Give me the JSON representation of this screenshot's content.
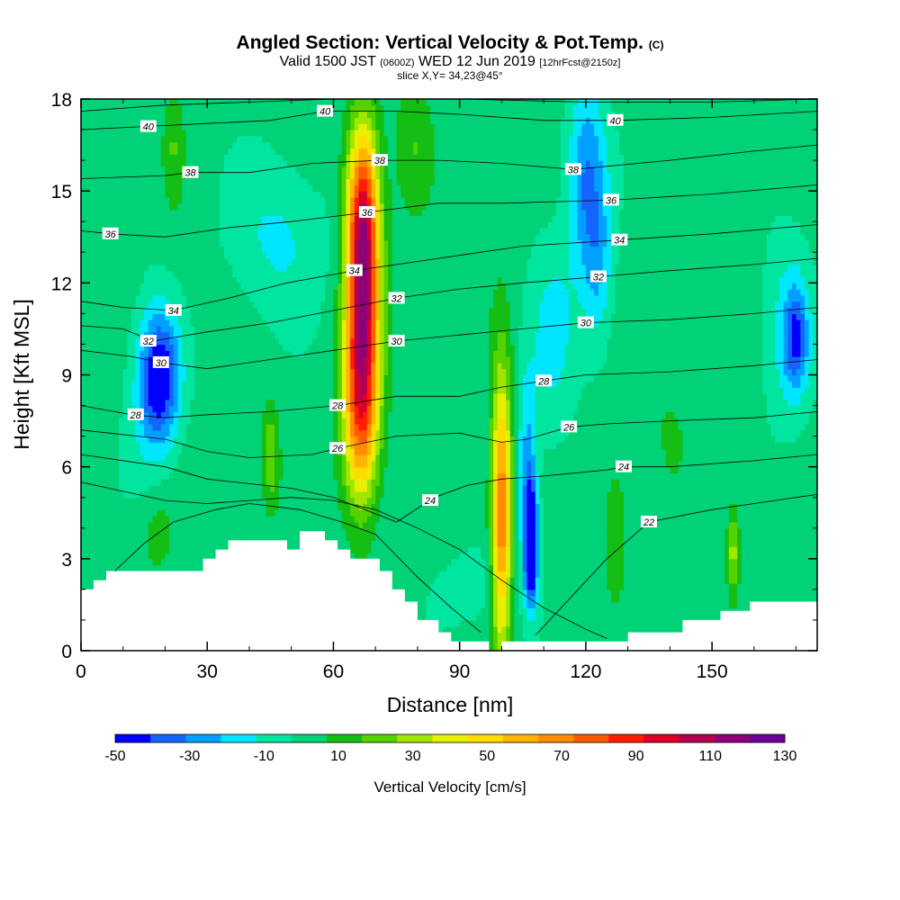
{
  "title": {
    "main": "Angled Section: Vertical Velocity & Pot.Temp.",
    "main_mark": "(C)",
    "valid_prefix": "Valid 1500 JST",
    "valid_zulu": "(0600Z)",
    "valid_day": "WED 12 Jun 2019",
    "valid_fcst": "[12hrFcst@2150z]",
    "slice": "slice X,Y= 34,23@45°"
  },
  "chart_data": {
    "type": "heatmap",
    "xlabel": "Distance [nm]",
    "ylabel": "Height [Kft MSL]",
    "xlim": [
      0,
      175
    ],
    "ylim": [
      0,
      18
    ],
    "x_ticks": [
      "0",
      "30",
      "60",
      "90",
      "120",
      "150"
    ],
    "y_ticks": [
      "0",
      "3",
      "6",
      "9",
      "12",
      "15",
      "18"
    ],
    "colorbar": {
      "title": "Vertical Velocity [cm/s]",
      "tick_labels": [
        "-50",
        "-30",
        "-10",
        "10",
        "30",
        "50",
        "70",
        "90",
        "110",
        "130"
      ],
      "levels": [
        -50,
        -40,
        -30,
        -20,
        -10,
        0,
        10,
        20,
        30,
        40,
        50,
        60,
        70,
        80,
        90,
        100,
        110,
        120,
        130
      ],
      "colors": [
        "#0000ff",
        "#1464ff",
        "#00a0ff",
        "#00e6ff",
        "#00e6a0",
        "#00d278",
        "#14be14",
        "#55d200",
        "#a0e600",
        "#e6f000",
        "#ffdc00",
        "#ffb400",
        "#ff8c00",
        "#ff5a00",
        "#ff1e00",
        "#dc0028",
        "#b40050",
        "#8c0078",
        "#6e0096"
      ]
    },
    "velocity_features": [
      {
        "x": 67,
        "y": 11,
        "sx": 2.8,
        "sy": 3.2,
        "value": 105
      },
      {
        "x": 67,
        "y": 14.5,
        "sx": 2.6,
        "sy": 2.0,
        "value": 60
      },
      {
        "x": 66,
        "y": 7.5,
        "sx": 3.0,
        "sy": 2.0,
        "value": 45
      },
      {
        "x": 100,
        "y": 4.5,
        "sx": 1.7,
        "sy": 3.2,
        "value": 82
      },
      {
        "x": 107,
        "y": 3.5,
        "sx": 1.1,
        "sy": 1.3,
        "value": -70
      },
      {
        "x": 106,
        "y": 6.0,
        "sx": 1.6,
        "sy": 2.2,
        "value": -22
      },
      {
        "x": 19,
        "y": 9.0,
        "sx": 3.2,
        "sy": 1.4,
        "value": -38
      },
      {
        "x": 17,
        "y": 8.0,
        "sx": 4.0,
        "sy": 2.2,
        "value": -15
      },
      {
        "x": 45,
        "y": 6.3,
        "sx": 1.4,
        "sy": 1.1,
        "value": 30
      },
      {
        "x": 22,
        "y": 16.5,
        "sx": 1.6,
        "sy": 1.3,
        "value": 18
      },
      {
        "x": 24,
        "y": 13.5,
        "sx": 2.2,
        "sy": 2.0,
        "value": 5
      },
      {
        "x": 120,
        "y": 15.5,
        "sx": 3.2,
        "sy": 2.3,
        "value": -28
      },
      {
        "x": 123,
        "y": 12.5,
        "sx": 2.5,
        "sy": 2.0,
        "value": -17
      },
      {
        "x": 112,
        "y": 10.2,
        "sx": 4.0,
        "sy": 2.5,
        "value": -12
      },
      {
        "x": 170,
        "y": 10.2,
        "sx": 2.0,
        "sy": 1.1,
        "value": -30
      },
      {
        "x": 168,
        "y": 10.5,
        "sx": 4.0,
        "sy": 2.5,
        "value": -12
      },
      {
        "x": 47,
        "y": 13.5,
        "sx": 8.0,
        "sy": 1.8,
        "value": -12
      },
      {
        "x": 95,
        "y": 2.0,
        "sx": 8.0,
        "sy": 1.0,
        "value": -5
      },
      {
        "x": 79,
        "y": 16.5,
        "sx": 3.0,
        "sy": 1.5,
        "value": 18
      },
      {
        "x": 155,
        "y": 3.3,
        "sx": 1.0,
        "sy": 1.0,
        "value": 35
      },
      {
        "x": 127,
        "y": 4.0,
        "sx": 2.0,
        "sy": 1.5,
        "value": 20
      },
      {
        "x": 18,
        "y": 4.0,
        "sx": 3.0,
        "sy": 1.2,
        "value": 15
      },
      {
        "x": 140,
        "y": 8.0,
        "sx": 5.0,
        "sy": 2.0,
        "value": 10
      },
      {
        "x": 90,
        "y": 11.0,
        "sx": 5.0,
        "sy": 3.0,
        "value": 5
      },
      {
        "x": 145,
        "y": 15.5,
        "sx": 5.0,
        "sy": 2.0,
        "value": 2
      }
    ],
    "terrain_kft": [
      [
        0,
        2.0
      ],
      [
        3,
        2.0
      ],
      [
        3,
        2.3
      ],
      [
        6,
        2.3
      ],
      [
        6,
        2.6
      ],
      [
        29,
        2.6
      ],
      [
        29,
        3.0
      ],
      [
        32,
        3.0
      ],
      [
        32,
        3.3
      ],
      [
        35,
        3.3
      ],
      [
        35,
        3.6
      ],
      [
        49,
        3.6
      ],
      [
        49,
        3.3
      ],
      [
        52,
        3.3
      ],
      [
        52,
        3.9
      ],
      [
        58,
        3.9
      ],
      [
        58,
        3.6
      ],
      [
        61,
        3.6
      ],
      [
        61,
        3.3
      ],
      [
        64,
        3.3
      ],
      [
        64,
        3.0
      ],
      [
        71,
        3.0
      ],
      [
        71,
        2.6
      ],
      [
        74,
        2.6
      ],
      [
        74,
        2.0
      ],
      [
        77,
        2.0
      ],
      [
        77,
        1.6
      ],
      [
        80,
        1.6
      ],
      [
        80,
        1.0
      ],
      [
        85,
        1.0
      ],
      [
        85,
        0.6
      ],
      [
        88,
        0.6
      ],
      [
        88,
        0.3
      ],
      [
        97,
        0.3
      ],
      [
        97,
        0.0
      ],
      [
        100,
        0.0
      ],
      [
        100,
        0.3
      ],
      [
        130,
        0.3
      ],
      [
        130,
        0.6
      ],
      [
        143,
        0.6
      ],
      [
        143,
        1.0
      ],
      [
        152,
        1.0
      ],
      [
        152,
        1.3
      ],
      [
        159,
        1.3
      ],
      [
        159,
        1.6
      ],
      [
        175,
        1.6
      ]
    ],
    "theta_contours": [
      {
        "label": "22",
        "points": [
          [
            108,
            0.5
          ],
          [
            125,
            3.0
          ],
          [
            135,
            4.2
          ],
          [
            150,
            4.6
          ],
          [
            160,
            4.8
          ],
          [
            175,
            5.1
          ]
        ],
        "labels": [
          [
            135,
            4.2
          ]
        ]
      },
      {
        "label": "24",
        "points": [
          [
            0,
            6.4
          ],
          [
            20,
            6.0
          ],
          [
            30,
            5.6
          ],
          [
            50,
            5.3
          ],
          [
            60,
            5.0
          ],
          [
            75,
            4.2
          ],
          [
            84,
            5.0
          ],
          [
            92,
            5.4
          ],
          [
            100,
            5.6
          ],
          [
            110,
            5.7
          ],
          [
            125,
            5.9
          ],
          [
            129,
            6.0
          ],
          [
            140,
            6.0
          ],
          [
            160,
            6.2
          ],
          [
            175,
            6.4
          ]
        ],
        "labels": [
          [
            83,
            4.9
          ],
          [
            129,
            6.0
          ]
        ]
      },
      {
        "label": "26",
        "points": [
          [
            0,
            7.2
          ],
          [
            20,
            6.9
          ],
          [
            30,
            6.5
          ],
          [
            40,
            6.3
          ],
          [
            55,
            6.4
          ],
          [
            61,
            6.6
          ],
          [
            75,
            7.0
          ],
          [
            90,
            7.1
          ],
          [
            100,
            6.8
          ],
          [
            106,
            6.9
          ],
          [
            116,
            7.3
          ],
          [
            125,
            7.4
          ],
          [
            140,
            7.5
          ],
          [
            160,
            7.6
          ],
          [
            175,
            7.8
          ]
        ],
        "labels": [
          [
            61,
            6.6
          ],
          [
            116,
            7.3
          ]
        ]
      },
      {
        "label": "28",
        "points": [
          [
            0,
            8.0
          ],
          [
            12,
            7.7
          ],
          [
            20,
            7.6
          ],
          [
            30,
            7.7
          ],
          [
            45,
            7.8
          ],
          [
            61,
            8.0
          ],
          [
            75,
            8.3
          ],
          [
            90,
            8.3
          ],
          [
            100,
            8.6
          ],
          [
            110,
            8.8
          ],
          [
            120,
            9.0
          ],
          [
            140,
            9.1
          ],
          [
            160,
            9.3
          ],
          [
            175,
            9.5
          ]
        ],
        "labels": [
          [
            13,
            7.7
          ],
          [
            61,
            8.0
          ],
          [
            110,
            8.8
          ]
        ]
      },
      {
        "label": "30",
        "points": [
          [
            0,
            9.8
          ],
          [
            12,
            9.6
          ],
          [
            19,
            9.4
          ],
          [
            30,
            9.2
          ],
          [
            45,
            9.5
          ],
          [
            60,
            9.8
          ],
          [
            75,
            10.1
          ],
          [
            90,
            10.3
          ],
          [
            105,
            10.5
          ],
          [
            120,
            10.7
          ],
          [
            140,
            10.8
          ],
          [
            160,
            11.0
          ],
          [
            175,
            11.2
          ]
        ],
        "labels": [
          [
            19,
            9.4
          ],
          [
            75,
            10.1
          ],
          [
            120,
            10.7
          ]
        ]
      },
      {
        "label": "32",
        "points": [
          [
            0,
            10.6
          ],
          [
            10,
            10.5
          ],
          [
            17,
            10.1
          ],
          [
            30,
            10.4
          ],
          [
            45,
            10.7
          ],
          [
            60,
            11.1
          ],
          [
            75,
            11.5
          ],
          [
            90,
            11.8
          ],
          [
            105,
            12.0
          ],
          [
            123,
            12.2
          ],
          [
            140,
            12.4
          ],
          [
            160,
            12.6
          ],
          [
            175,
            12.8
          ]
        ],
        "labels": [
          [
            16,
            10.1
          ],
          [
            75,
            11.5
          ],
          [
            123,
            12.2
          ]
        ]
      },
      {
        "label": "34",
        "points": [
          [
            0,
            11.4
          ],
          [
            10,
            11.2
          ],
          [
            22,
            11.1
          ],
          [
            35,
            11.5
          ],
          [
            49,
            12.0
          ],
          [
            65,
            12.4
          ],
          [
            80,
            12.7
          ],
          [
            90,
            12.9
          ],
          [
            105,
            13.2
          ],
          [
            128,
            13.4
          ],
          [
            150,
            13.6
          ],
          [
            175,
            13.9
          ]
        ],
        "labels": [
          [
            22,
            11.1
          ],
          [
            65,
            12.4
          ],
          [
            128,
            13.4
          ]
        ]
      },
      {
        "label": "36",
        "points": [
          [
            0,
            13.7
          ],
          [
            7,
            13.6
          ],
          [
            20,
            13.5
          ],
          [
            35,
            13.8
          ],
          [
            50,
            14.0
          ],
          [
            68,
            14.3
          ],
          [
            85,
            14.6
          ],
          [
            100,
            14.6
          ],
          [
            126,
            14.7
          ],
          [
            150,
            14.9
          ],
          [
            175,
            15.2
          ]
        ],
        "labels": [
          [
            7,
            13.6
          ],
          [
            68,
            14.3
          ],
          [
            126,
            14.7
          ]
        ]
      },
      {
        "label": "38",
        "points": [
          [
            0,
            15.4
          ],
          [
            20,
            15.5
          ],
          [
            26,
            15.6
          ],
          [
            40,
            15.6
          ],
          [
            55,
            15.9
          ],
          [
            71,
            16.0
          ],
          [
            85,
            16.0
          ],
          [
            100,
            15.9
          ],
          [
            117,
            15.7
          ],
          [
            140,
            16.0
          ],
          [
            160,
            16.3
          ],
          [
            175,
            16.5
          ]
        ],
        "labels": [
          [
            26,
            15.6
          ],
          [
            71,
            16.0
          ],
          [
            117,
            15.7
          ]
        ]
      },
      {
        "label": "40",
        "points": [
          [
            0,
            17.0
          ],
          [
            15,
            17.1
          ],
          [
            30,
            17.2
          ],
          [
            45,
            17.3
          ],
          [
            58,
            17.6
          ],
          [
            75,
            17.6
          ],
          [
            90,
            17.5
          ],
          [
            110,
            17.3
          ],
          [
            127,
            17.3
          ],
          [
            150,
            17.4
          ],
          [
            175,
            17.6
          ]
        ],
        "labels": [
          [
            16,
            17.1
          ],
          [
            58,
            17.6
          ],
          [
            127,
            17.3
          ]
        ]
      },
      {
        "label": "",
        "points": [
          [
            0,
            17.6
          ],
          [
            20,
            17.8
          ],
          [
            40,
            17.9
          ],
          [
            60,
            18.0
          ],
          [
            90,
            18.0
          ],
          [
            120,
            17.9
          ],
          [
            150,
            17.9
          ],
          [
            175,
            18.0
          ]
        ],
        "labels": []
      },
      {
        "label": "",
        "points": [
          [
            8,
            2.6
          ],
          [
            15,
            3.5
          ],
          [
            22,
            4.2
          ],
          [
            32,
            4.6
          ],
          [
            40,
            4.8
          ],
          [
            52,
            4.6
          ],
          [
            62,
            4.2
          ],
          [
            70,
            3.8
          ],
          [
            80,
            2.4
          ],
          [
            88,
            1.4
          ],
          [
            95,
            0.6
          ]
        ],
        "labels": []
      },
      {
        "label": "",
        "points": [
          [
            0,
            5.5
          ],
          [
            10,
            5.2
          ],
          [
            20,
            4.9
          ],
          [
            30,
            4.8
          ],
          [
            40,
            4.9
          ],
          [
            50,
            5.0
          ],
          [
            60,
            4.9
          ],
          [
            70,
            4.6
          ],
          [
            80,
            4.0
          ],
          [
            90,
            3.3
          ],
          [
            100,
            2.3
          ],
          [
            110,
            1.4
          ],
          [
            120,
            0.7
          ],
          [
            125,
            0.4
          ]
        ],
        "labels": []
      }
    ]
  }
}
